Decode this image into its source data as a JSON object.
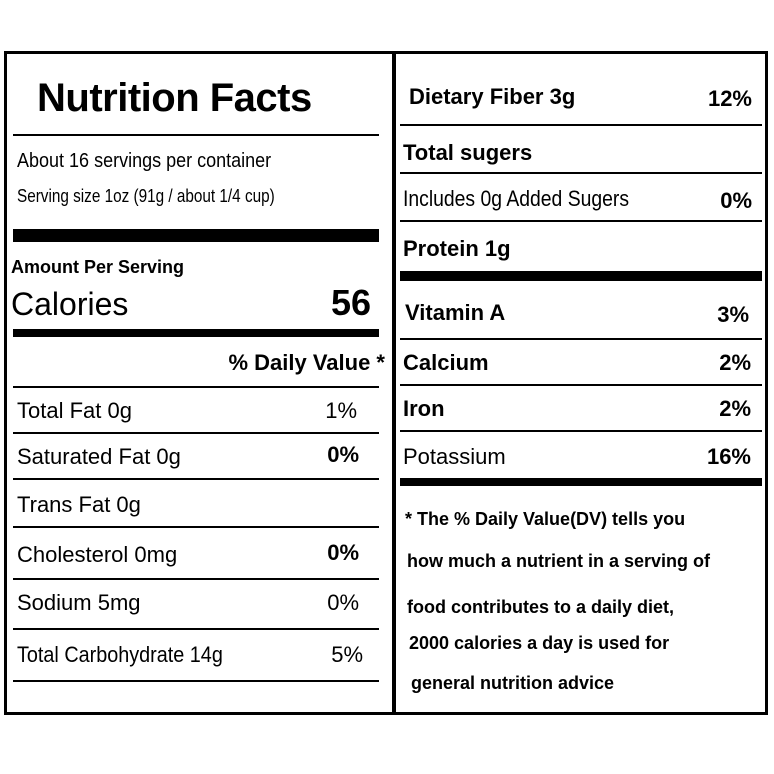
{
  "left": {
    "title": "Nutrition Facts",
    "servings_per_container": "About 16 servings per container",
    "serving_size": "Serving size 1oz (91g / about 1/4 cup)",
    "amount_per_serving": "Amount Per Serving",
    "calories_label": "Calories",
    "calories_value": "56",
    "daily_value_header": "% Daily Value *",
    "nutrients": [
      {
        "label": "Total Fat 0g",
        "dv": "1%"
      },
      {
        "label": "Saturated Fat 0g",
        "dv": "0%"
      },
      {
        "label": "Trans Fat 0g",
        "dv": ""
      },
      {
        "label": "Cholesterol  0mg",
        "dv": "0%"
      },
      {
        "label": "Sodium 5mg",
        "dv": "0%"
      },
      {
        "label": "Total Carbohydrate 14g",
        "dv": "5%"
      }
    ]
  },
  "right": {
    "dietary_fiber": {
      "label": "Dietary Fiber 3g",
      "dv": "12%"
    },
    "total_sugars": {
      "label": "Total sugers"
    },
    "added_sugars": {
      "label": "Includes 0g Added Sugers",
      "dv": "0%"
    },
    "protein": {
      "label": "Protein 1g"
    },
    "vitamins": [
      {
        "label": "Vitamin A",
        "dv": "3%"
      },
      {
        "label": "Calcium",
        "dv": "2%"
      },
      {
        "label": "Iron",
        "dv": "2%"
      },
      {
        "label": "Potassium",
        "dv": "16%"
      }
    ],
    "footnote": [
      "* The % Daily Value(DV)  tells you",
      "how much a nutrient in a serving of",
      "food contributes to a daily diet,",
      "2000 calories a day is used for",
      "general nutrition advice"
    ]
  }
}
